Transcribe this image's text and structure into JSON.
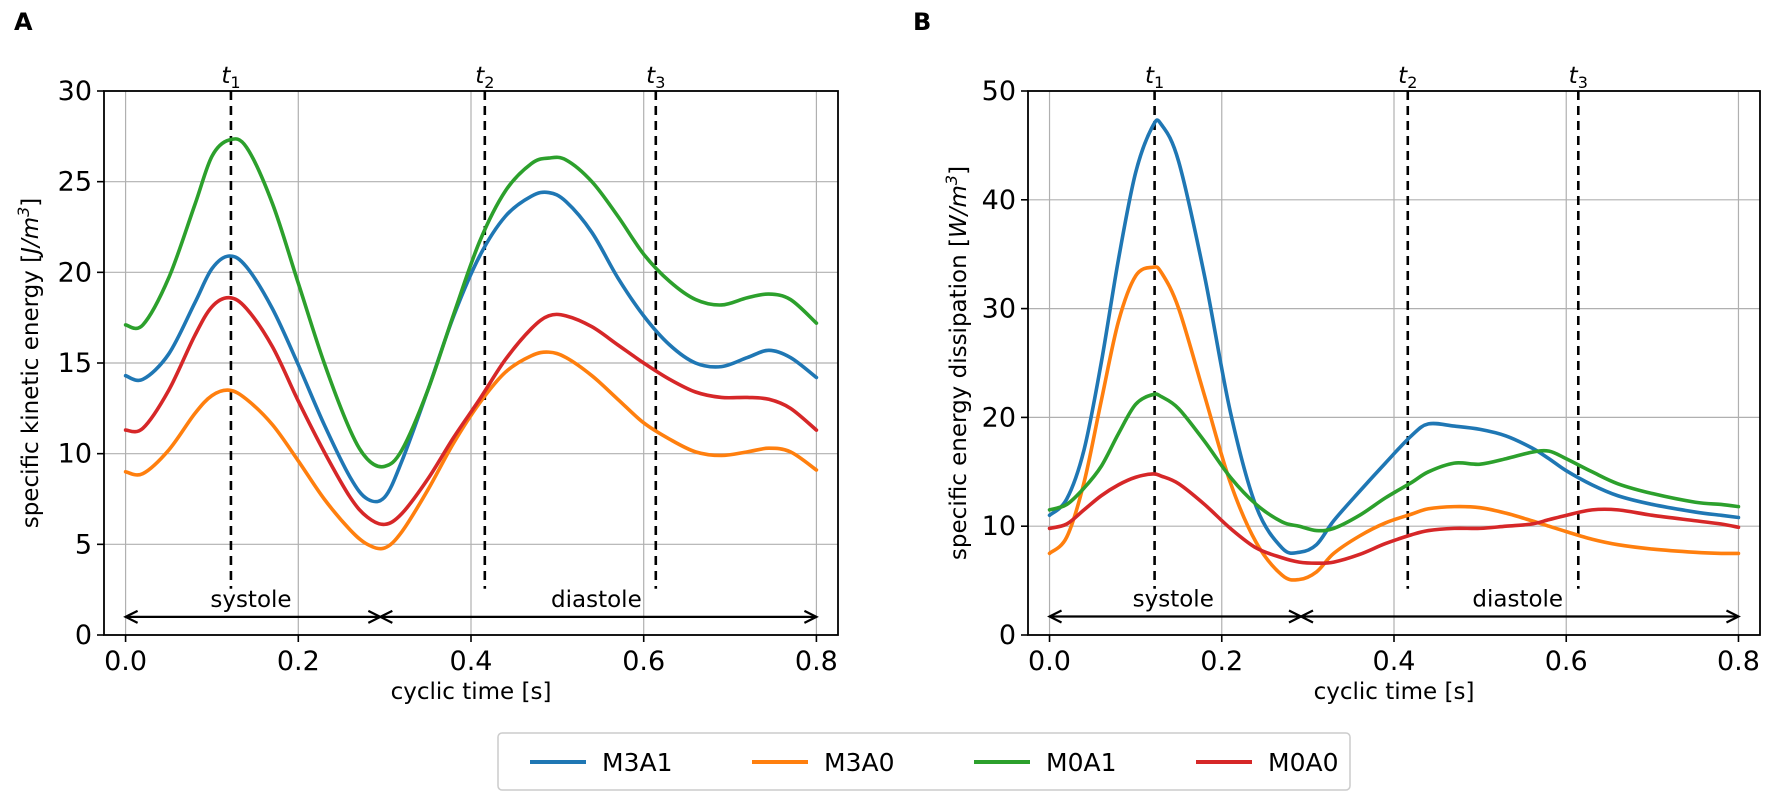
{
  "chart_data": [
    {
      "type": "line",
      "panel_label": "A",
      "xlabel": "cyclic time [s]",
      "ylabel": {
        "text": "specific kinetic energy [",
        "unit_base": "J/m",
        "unit_exp": "3",
        "close": "]"
      },
      "xlim": [
        -0.025,
        0.825
      ],
      "ylim": [
        0,
        30
      ],
      "xticks": [
        0.0,
        0.2,
        0.4,
        0.6,
        0.8
      ],
      "xtick_labels": [
        "0.0",
        "0.2",
        "0.4",
        "0.6",
        "0.8"
      ],
      "yticks": [
        0,
        5,
        10,
        15,
        20,
        25,
        30
      ],
      "ytick_labels": [
        "0",
        "5",
        "10",
        "15",
        "20",
        "25",
        "30"
      ],
      "grid": true,
      "time_markers": [
        {
          "base": "t",
          "sub": "1",
          "x": 0.122
        },
        {
          "base": "t",
          "sub": "2",
          "x": 0.416
        },
        {
          "base": "t",
          "sub": "3",
          "x": 0.614
        }
      ],
      "phases": [
        {
          "label": "systole",
          "start": 0.0,
          "end": 0.295
        },
        {
          "label": "diastole",
          "start": 0.295,
          "end": 0.8
        }
      ],
      "phase_arrow_y": 1.0,
      "phase_label_y": 1.55,
      "x": [
        0.0,
        0.02,
        0.05,
        0.08,
        0.1,
        0.12,
        0.14,
        0.17,
        0.2,
        0.23,
        0.26,
        0.28,
        0.3,
        0.32,
        0.35,
        0.38,
        0.41,
        0.44,
        0.47,
        0.49,
        0.51,
        0.54,
        0.57,
        0.6,
        0.63,
        0.66,
        0.69,
        0.72,
        0.745,
        0.77,
        0.8
      ],
      "series": [
        {
          "name": "M3A1",
          "color": "#1f77b4",
          "values": [
            14.3,
            14.1,
            15.5,
            18.3,
            20.2,
            20.9,
            20.3,
            18.0,
            14.9,
            11.6,
            8.7,
            7.5,
            7.6,
            9.6,
            13.5,
            17.6,
            20.9,
            23.1,
            24.2,
            24.4,
            23.9,
            22.2,
            19.7,
            17.6,
            16.0,
            15.0,
            14.8,
            15.3,
            15.7,
            15.3,
            14.2
          ]
        },
        {
          "name": "M3A0",
          "color": "#ff7f0e",
          "values": [
            9.0,
            8.9,
            10.2,
            12.2,
            13.2,
            13.5,
            13.0,
            11.6,
            9.6,
            7.5,
            5.8,
            5.0,
            4.8,
            5.7,
            8.0,
            10.6,
            12.8,
            14.5,
            15.4,
            15.6,
            15.3,
            14.3,
            13.0,
            11.7,
            10.8,
            10.1,
            9.9,
            10.1,
            10.3,
            10.1,
            9.1
          ]
        },
        {
          "name": "M0A1",
          "color": "#2ca02c",
          "values": [
            17.1,
            17.1,
            19.7,
            23.7,
            26.4,
            27.3,
            26.9,
            23.8,
            19.4,
            15.0,
            11.3,
            9.7,
            9.3,
            10.2,
            13.5,
            17.7,
            21.7,
            24.5,
            26.0,
            26.3,
            26.2,
            25.0,
            23.1,
            21.0,
            19.5,
            18.5,
            18.2,
            18.6,
            18.8,
            18.5,
            17.2
          ]
        },
        {
          "name": "M0A0",
          "color": "#d62728",
          "values": [
            11.3,
            11.4,
            13.5,
            16.5,
            18.1,
            18.6,
            18.0,
            15.9,
            12.9,
            10.1,
            7.6,
            6.5,
            6.1,
            6.7,
            8.6,
            10.9,
            13.0,
            15.2,
            16.9,
            17.6,
            17.6,
            17.0,
            16.0,
            15.0,
            14.1,
            13.4,
            13.1,
            13.1,
            13.0,
            12.5,
            11.3
          ]
        }
      ]
    },
    {
      "type": "line",
      "panel_label": "B",
      "xlabel": "cyclic time [s]",
      "ylabel": {
        "text": "specific energy dissipation [",
        "unit_base": "W/m",
        "unit_exp": "3",
        "close": "]"
      },
      "xlim": [
        -0.025,
        0.825
      ],
      "ylim": [
        0,
        50
      ],
      "xticks": [
        0.0,
        0.2,
        0.4,
        0.6,
        0.8
      ],
      "xtick_labels": [
        "0.0",
        "0.2",
        "0.4",
        "0.6",
        "0.8"
      ],
      "yticks": [
        0,
        10,
        20,
        30,
        40,
        50
      ],
      "ytick_labels": [
        "0",
        "10",
        "20",
        "30",
        "40",
        "50"
      ],
      "grid": true,
      "time_markers": [
        {
          "base": "t",
          "sub": "1",
          "x": 0.122
        },
        {
          "base": "t",
          "sub": "2",
          "x": 0.416
        },
        {
          "base": "t",
          "sub": "3",
          "x": 0.614
        }
      ],
      "phases": [
        {
          "label": "systole",
          "start": 0.0,
          "end": 0.292
        },
        {
          "label": "diastole",
          "start": 0.292,
          "end": 0.8
        }
      ],
      "phase_arrow_y": 1.7,
      "phase_label_y": 2.6,
      "x": [
        0.0,
        0.02,
        0.04,
        0.06,
        0.08,
        0.1,
        0.12,
        0.13,
        0.15,
        0.18,
        0.21,
        0.24,
        0.27,
        0.29,
        0.31,
        0.33,
        0.36,
        0.39,
        0.42,
        0.44,
        0.47,
        0.5,
        0.53,
        0.56,
        0.58,
        0.6,
        0.63,
        0.66,
        0.7,
        0.75,
        0.78,
        0.8
      ],
      "series": [
        {
          "name": "M3A1",
          "color": "#1f77b4",
          "values": [
            11.0,
            12.5,
            17.0,
            25.0,
            34.5,
            42.5,
            46.8,
            46.9,
            43.5,
            33.0,
            20.5,
            11.8,
            8.0,
            7.6,
            8.3,
            10.5,
            13.2,
            15.8,
            18.3,
            19.4,
            19.2,
            18.9,
            18.3,
            17.2,
            16.2,
            15.1,
            13.8,
            12.8,
            12.0,
            11.3,
            11.0,
            10.8
          ]
        },
        {
          "name": "M3A0",
          "color": "#ff7f0e",
          "values": [
            7.5,
            9.0,
            14.0,
            21.5,
            28.8,
            33.0,
            33.8,
            33.3,
            30.0,
            22.0,
            14.0,
            8.5,
            5.5,
            5.1,
            5.8,
            7.5,
            9.1,
            10.3,
            11.1,
            11.6,
            11.8,
            11.7,
            11.2,
            10.5,
            10.0,
            9.5,
            8.8,
            8.3,
            7.9,
            7.6,
            7.5,
            7.5
          ]
        },
        {
          "name": "M0A1",
          "color": "#2ca02c",
          "values": [
            11.5,
            12.0,
            13.5,
            15.5,
            18.5,
            21.2,
            22.1,
            21.9,
            20.8,
            17.8,
            14.5,
            12.0,
            10.4,
            10.0,
            9.6,
            9.8,
            11.0,
            12.6,
            14.0,
            15.0,
            15.8,
            15.7,
            16.2,
            16.8,
            16.9,
            16.2,
            15.0,
            13.9,
            13.0,
            12.2,
            12.0,
            11.8
          ]
        },
        {
          "name": "M0A0",
          "color": "#d62728",
          "values": [
            9.8,
            10.2,
            11.5,
            12.8,
            13.8,
            14.5,
            14.8,
            14.6,
            13.9,
            12.0,
            9.8,
            8.0,
            7.1,
            6.7,
            6.6,
            6.7,
            7.4,
            8.4,
            9.2,
            9.6,
            9.8,
            9.8,
            10.0,
            10.2,
            10.6,
            11.0,
            11.5,
            11.5,
            11.0,
            10.5,
            10.2,
            9.9
          ]
        }
      ]
    }
  ],
  "legend": {
    "position": "bottom-center",
    "items": [
      {
        "label": "M3A1",
        "color": "#1f77b4"
      },
      {
        "label": "M3A0",
        "color": "#ff7f0e"
      },
      {
        "label": "M0A1",
        "color": "#2ca02c"
      },
      {
        "label": "M0A0",
        "color": "#d62728"
      }
    ]
  }
}
